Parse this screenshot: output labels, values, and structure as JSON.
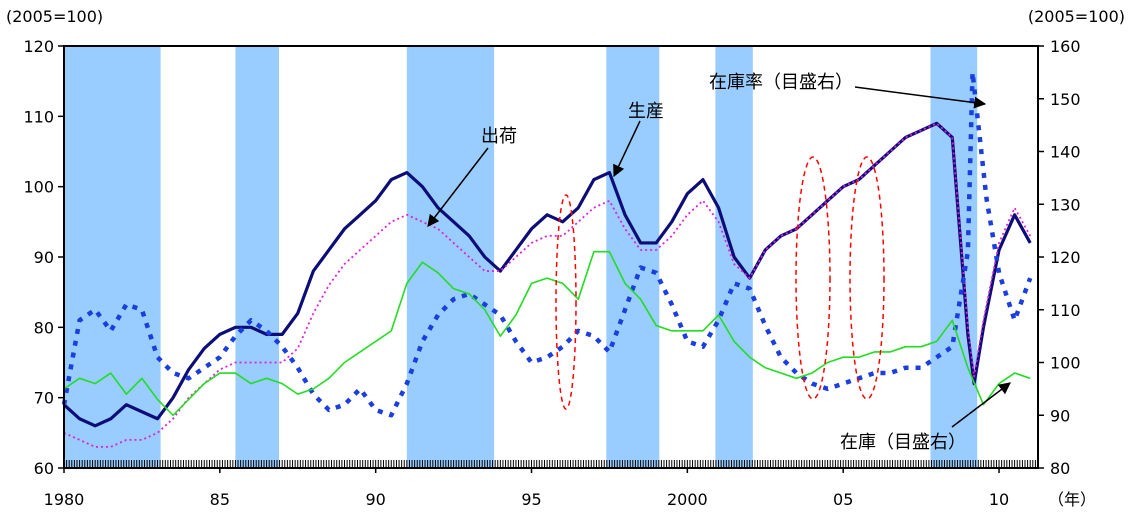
{
  "chart_data": {
    "type": "line",
    "left_axis_label": "(2005=100)",
    "right_axis_label": "(2005=100)",
    "x_unit": "（年）",
    "xlim": [
      1980,
      2011.25
    ],
    "ylim_left": [
      60,
      120
    ],
    "ylim_right": [
      80,
      160
    ],
    "yticks_left": [
      60,
      70,
      80,
      90,
      100,
      110,
      120
    ],
    "yticks_right": [
      80,
      90,
      100,
      110,
      120,
      130,
      140,
      150,
      160
    ],
    "xticks": [
      {
        "x": 1980,
        "label": "1980"
      },
      {
        "x": 1985,
        "label": "85"
      },
      {
        "x": 1990,
        "label": "90"
      },
      {
        "x": 1995,
        "label": "95"
      },
      {
        "x": 2000,
        "label": "2000"
      },
      {
        "x": 2005,
        "label": "05"
      },
      {
        "x": 2010,
        "label": "10"
      }
    ],
    "recessions": [
      [
        1980.0,
        1983.1
      ],
      [
        1985.5,
        1986.9
      ],
      [
        1991.0,
        1993.8
      ],
      [
        1997.4,
        1999.1
      ],
      [
        2000.9,
        2002.1
      ],
      [
        2007.8,
        2009.3
      ]
    ],
    "grid": false,
    "legend": "none",
    "annotations": {
      "shipments": "出荷",
      "production": "生産",
      "inventory_ratio": "在庫率（目盛右）",
      "inventory": "在庫（目盛右）"
    },
    "series": [
      {
        "name": "生産",
        "axis": "left",
        "style": "solid",
        "color": "#0d0d78",
        "x": [
          1980,
          1980.5,
          1981,
          1981.5,
          1982,
          1982.5,
          1983,
          1983.5,
          1984,
          1984.5,
          1985,
          1985.5,
          1986,
          1986.5,
          1987,
          1987.5,
          1988,
          1988.5,
          1989,
          1989.5,
          1990,
          1990.5,
          1991,
          1991.5,
          1992,
          1992.5,
          1993,
          1993.5,
          1994,
          1994.5,
          1995,
          1995.5,
          1996,
          1996.5,
          1997,
          1997.5,
          1998,
          1998.5,
          1999,
          1999.5,
          2000,
          2000.5,
          2001,
          2001.5,
          2002,
          2002.5,
          2003,
          2003.5,
          2004,
          2004.5,
          2005,
          2005.5,
          2006,
          2006.5,
          2007,
          2007.5,
          2008,
          2008.5,
          2009,
          2009.2,
          2009.5,
          2010,
          2010.5,
          2011
        ],
        "values": [
          69,
          67,
          66,
          67,
          69,
          68,
          67,
          70,
          74,
          77,
          79,
          80,
          80,
          79,
          79,
          82,
          88,
          91,
          94,
          96,
          98,
          101,
          102,
          100,
          97,
          95,
          93,
          90,
          88,
          91,
          94,
          96,
          95,
          97,
          101,
          102,
          96,
          92,
          92,
          95,
          99,
          101,
          97,
          90,
          87,
          91,
          93,
          94,
          96,
          98,
          100,
          101,
          103,
          105,
          107,
          108,
          109,
          107,
          79,
          72,
          80,
          91,
          96,
          92
        ]
      },
      {
        "name": "出荷",
        "axis": "left",
        "style": "dotted",
        "color": "#e020e0",
        "x": [
          1980,
          1980.5,
          1981,
          1981.5,
          1982,
          1982.5,
          1983,
          1983.5,
          1984,
          1984.5,
          1985,
          1985.5,
          1986,
          1986.5,
          1987,
          1987.5,
          1988,
          1988.5,
          1989,
          1989.5,
          1990,
          1990.5,
          1991,
          1991.5,
          1992,
          1992.5,
          1993,
          1993.5,
          1994,
          1994.5,
          1995,
          1995.5,
          1996,
          1996.5,
          1997,
          1997.5,
          1998,
          1998.5,
          1999,
          1999.5,
          2000,
          2000.5,
          2001,
          2001.5,
          2002,
          2002.5,
          2003,
          2003.5,
          2004,
          2004.5,
          2005,
          2005.5,
          2006,
          2006.5,
          2007,
          2007.5,
          2008,
          2008.5,
          2009,
          2009.2,
          2009.5,
          2010,
          2010.5,
          2011
        ],
        "values": [
          65,
          64,
          63,
          63,
          64,
          64,
          65,
          67,
          70,
          72,
          74,
          75,
          75,
          75,
          75,
          77,
          82,
          86,
          89,
          91,
          93,
          95,
          96,
          95,
          94,
          92,
          90,
          88,
          88,
          90,
          92,
          93,
          93,
          95,
          97,
          98,
          94,
          91,
          91,
          93,
          96,
          98,
          95,
          89,
          87,
          91,
          93,
          94,
          96,
          98,
          100,
          101,
          103,
          105,
          107,
          108,
          109,
          107,
          80,
          73,
          81,
          92,
          97,
          93
        ]
      },
      {
        "name": "在庫率（目盛右）",
        "axis": "right",
        "style": "dashed",
        "color": "#1a3ee0",
        "x": [
          1980,
          1980.5,
          1981,
          1981.5,
          1982,
          1982.5,
          1983,
          1983.5,
          1984,
          1984.5,
          1985,
          1985.5,
          1986,
          1986.5,
          1987,
          1987.5,
          1988,
          1988.5,
          1989,
          1989.5,
          1990,
          1990.5,
          1991,
          1991.5,
          1992,
          1992.5,
          1993,
          1993.5,
          1994,
          1994.5,
          1995,
          1995.5,
          1996,
          1996.5,
          1997,
          1997.5,
          1998,
          1998.5,
          1999,
          1999.5,
          2000,
          2000.5,
          2001,
          2001.5,
          2002,
          2002.5,
          2003,
          2003.5,
          2004,
          2004.5,
          2005,
          2005.5,
          2006,
          2006.5,
          2007,
          2007.5,
          2008,
          2008.5,
          2009,
          2009.15,
          2009.3,
          2009.6,
          2010,
          2010.5,
          2011
        ],
        "values": [
          92,
          108,
          110,
          106,
          111,
          110,
          101,
          98,
          97,
          99,
          101,
          105,
          108,
          106,
          103,
          99,
          94,
          91,
          92,
          95,
          91,
          90,
          96,
          104,
          109,
          112,
          113,
          111,
          109,
          104,
          100,
          101,
          103,
          106,
          105,
          102,
          110,
          118,
          117,
          111,
          104,
          103,
          108,
          115,
          114,
          107,
          101,
          98,
          96,
          95,
          96,
          97,
          98,
          98,
          99,
          99,
          101,
          103,
          121,
          155,
          147,
          131,
          117,
          108,
          116
        ]
      },
      {
        "name": "在庫（目盛右）",
        "axis": "right",
        "style": "solid",
        "color": "#22dd22",
        "x": [
          1980,
          1980.5,
          1981,
          1981.5,
          1982,
          1982.5,
          1983,
          1983.5,
          1984,
          1984.5,
          1985,
          1985.5,
          1986,
          1986.5,
          1987,
          1987.5,
          1988,
          1988.5,
          1989,
          1989.5,
          1990,
          1990.5,
          1991,
          1991.5,
          1992,
          1992.5,
          1993,
          1993.5,
          1994,
          1994.5,
          1995,
          1995.5,
          1996,
          1996.5,
          1997,
          1997.5,
          1998,
          1998.5,
          1999,
          1999.5,
          2000,
          2000.5,
          2001,
          2001.5,
          2002,
          2002.5,
          2003,
          2003.5,
          2004,
          2004.5,
          2005,
          2005.5,
          2006,
          2006.5,
          2007,
          2007.5,
          2008,
          2008.5,
          2009,
          2009.5,
          2010,
          2010.5,
          2011
        ],
        "values": [
          95,
          97,
          96,
          98,
          94,
          97,
          93,
          90,
          93,
          96,
          98,
          98,
          96,
          97,
          96,
          94,
          95,
          97,
          100,
          102,
          104,
          106,
          115,
          119,
          117,
          114,
          113,
          110,
          105,
          109,
          115,
          116,
          115,
          112,
          121,
          121,
          115,
          112,
          107,
          106,
          106,
          106,
          109,
          104,
          101,
          99,
          98,
          97,
          98,
          100,
          101,
          101,
          102,
          102,
          103,
          103,
          104,
          108,
          99,
          92,
          96,
          98,
          97
        ]
      }
    ]
  }
}
